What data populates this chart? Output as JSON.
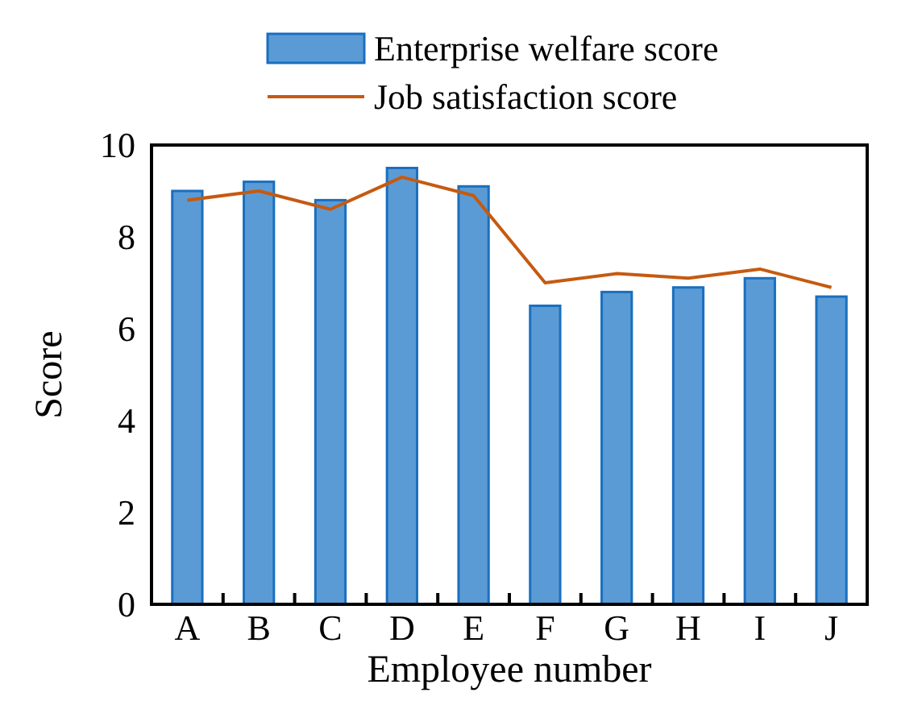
{
  "chart_data": {
    "type": "bar",
    "xlabel": "Employee number",
    "ylabel": "Score",
    "categories": [
      "A",
      "B",
      "C",
      "D",
      "E",
      "F",
      "G",
      "H",
      "I",
      "J"
    ],
    "series": [
      {
        "name": "Enterprise welfare score",
        "color": "#5b9bd5",
        "values": [
          9.0,
          9.2,
          8.8,
          9.5,
          9.1,
          6.5,
          6.8,
          6.9,
          7.1,
          6.7
        ]
      },
      {
        "name": "Job satisfaction score",
        "type": "line",
        "color": "#c55a11",
        "values": [
          8.8,
          9.0,
          8.6,
          9.3,
          8.9,
          7.0,
          7.2,
          7.1,
          7.3,
          6.9
        ]
      }
    ],
    "ylim": [
      0,
      10
    ],
    "yticks": [
      0,
      2,
      4,
      6,
      8,
      10
    ],
    "grid": false,
    "legend": "top",
    "marker": "none",
    "line_style": "solid"
  }
}
